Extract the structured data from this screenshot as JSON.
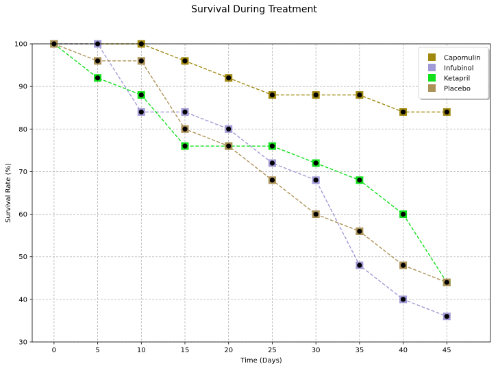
{
  "chart_data": {
    "type": "line",
    "title": "Survival During Treatment",
    "xlabel": "Time (Days)",
    "ylabel": "Survival Rate (%)",
    "x": [
      0,
      5,
      10,
      15,
      20,
      25,
      30,
      35,
      40,
      45
    ],
    "xticks": [
      0,
      5,
      10,
      15,
      20,
      25,
      30,
      35,
      40,
      45
    ],
    "yticks": [
      30,
      40,
      50,
      60,
      70,
      80,
      90,
      100
    ],
    "xlim": [
      -2.5,
      50
    ],
    "ylim": [
      30,
      100
    ],
    "grid": true,
    "legend_position": "top-right",
    "marker_inner_color": "#000000",
    "series": [
      {
        "name": "Capomulin",
        "color": "#a0880e",
        "values": [
          100,
          100,
          100,
          96,
          92,
          88,
          88,
          88,
          84,
          84
        ]
      },
      {
        "name": "Infubinol",
        "color": "#a29ad6",
        "values": [
          100,
          100,
          84,
          84,
          80,
          72,
          68,
          48,
          40,
          36
        ]
      },
      {
        "name": "Ketapril",
        "color": "#13e01d",
        "values": [
          100,
          92,
          88,
          76,
          76,
          76,
          72,
          68,
          60,
          44
        ]
      },
      {
        "name": "Placebo",
        "color": "#ad9258",
        "values": [
          100,
          96,
          96,
          80,
          76,
          68,
          60,
          56,
          48,
          44
        ]
      }
    ]
  }
}
